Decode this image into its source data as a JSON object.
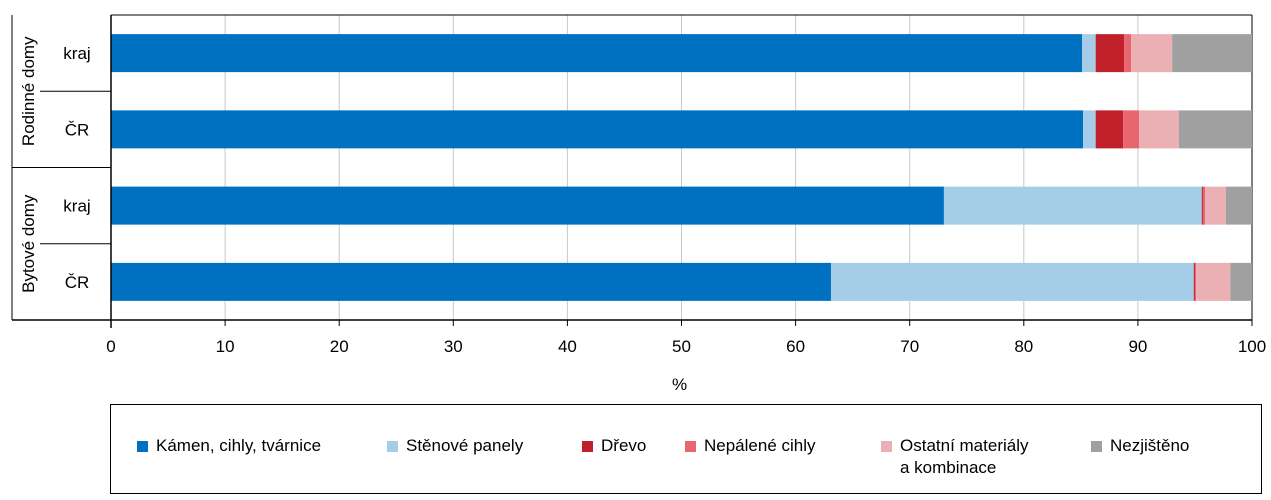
{
  "chart_data": {
    "type": "bar",
    "orientation": "horizontal",
    "stacked": true,
    "groups": [
      {
        "label": "Rodinné domy",
        "categories": [
          "kraj",
          "ČR"
        ]
      },
      {
        "label": "Bytové domy",
        "categories": [
          "kraj",
          "ČR"
        ]
      }
    ],
    "categories": [
      "Rodinné domy – kraj",
      "Rodinné domy – ČR",
      "Bytové domy – kraj",
      "Bytové domy – ČR"
    ],
    "series": [
      {
        "name": "Kámen, cihly, tvárnice",
        "color": "#0070C0",
        "values": [
          85.1,
          85.2,
          73.0,
          63.1
        ]
      },
      {
        "name": "Stěnové panely",
        "color": "#A6CDE8",
        "values": [
          1.2,
          1.1,
          22.6,
          31.8
        ]
      },
      {
        "name": "Dřevo",
        "color": "#C0202A",
        "values": [
          2.5,
          2.4,
          0.1,
          0.1
        ]
      },
      {
        "name": "Nepálené cihly",
        "color": "#E8666E",
        "values": [
          0.6,
          1.4,
          0.2,
          0.1
        ]
      },
      {
        "name": "Ostatní materiály\na kombinace",
        "color": "#EBB0B4",
        "values": [
          3.6,
          3.5,
          1.8,
          3.0
        ]
      },
      {
        "name": "Nezjištěno",
        "color": "#A0A0A0",
        "values": [
          7.0,
          6.4,
          2.3,
          1.9
        ]
      }
    ],
    "xlabel": "%",
    "xlim": [
      0,
      100
    ],
    "xticks": [
      0,
      10,
      20,
      30,
      40,
      50,
      60,
      70,
      80,
      90,
      100
    ],
    "grid": true,
    "legend": "bottom"
  }
}
